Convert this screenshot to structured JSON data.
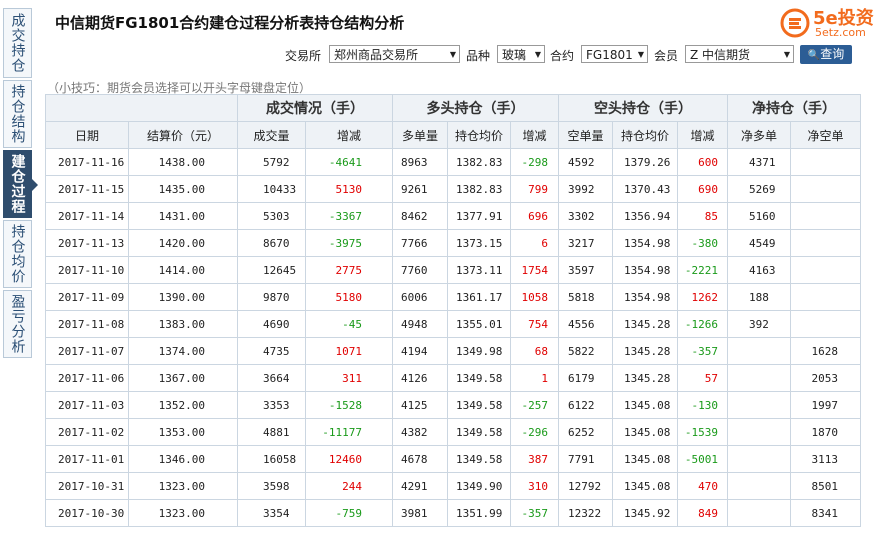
{
  "sidebar": {
    "tabs": [
      "成交持仓",
      "持仓结构",
      "建仓过程",
      "持仓均价",
      "盈亏分析"
    ]
  },
  "header": {
    "title": "中信期货FG1801合约建仓过程分析表持仓结构分析"
  },
  "logo": {
    "brand": "5e投资",
    "domain": "5etz.com"
  },
  "filters": {
    "exchange_label": "交易所",
    "exchange": "郑州商品交易所",
    "variety_label": "品种",
    "variety": "玻璃",
    "contract_label": "合约",
    "contract": "FG1801",
    "member_label": "会员",
    "member": "Z 中信期货",
    "button": "查询"
  },
  "tip": "（小技巧：期货会员选择可以开头字母键盘定位）",
  "table": {
    "groups": [
      "成交情况（手）",
      "多头持仓（手）",
      "空头持仓（手）",
      "净持仓（手）"
    ],
    "columns": [
      "日期",
      "结算价（元）",
      "成交量",
      "增减",
      "多单量",
      "持仓均价",
      "增减",
      "空单量",
      "持仓均价",
      "增减",
      "净多单",
      "净空单"
    ],
    "rows": [
      [
        "2017-11-16",
        "1438.00",
        "5792",
        "-4641",
        "8963",
        "1382.83",
        "-298",
        "4592",
        "1379.26",
        "600",
        "4371",
        null
      ],
      [
        "2017-11-15",
        "1435.00",
        "10433",
        "5130",
        "9261",
        "1382.83",
        "799",
        "3992",
        "1370.43",
        "690",
        "5269",
        null
      ],
      [
        "2017-11-14",
        "1431.00",
        "5303",
        "-3367",
        "8462",
        "1377.91",
        "696",
        "3302",
        "1356.94",
        "85",
        "5160",
        null
      ],
      [
        "2017-11-13",
        "1420.00",
        "8670",
        "-3975",
        "7766",
        "1373.15",
        "6",
        "3217",
        "1354.98",
        "-380",
        "4549",
        null
      ],
      [
        "2017-11-10",
        "1414.00",
        "12645",
        "2775",
        "7760",
        "1373.11",
        "1754",
        "3597",
        "1354.98",
        "-2221",
        "4163",
        null
      ],
      [
        "2017-11-09",
        "1390.00",
        "9870",
        "5180",
        "6006",
        "1361.17",
        "1058",
        "5818",
        "1354.98",
        "1262",
        "188",
        null
      ],
      [
        "2017-11-08",
        "1383.00",
        "4690",
        "-45",
        "4948",
        "1355.01",
        "754",
        "4556",
        "1345.28",
        "-1266",
        "392",
        null
      ],
      [
        "2017-11-07",
        "1374.00",
        "4735",
        "1071",
        "4194",
        "1349.98",
        "68",
        "5822",
        "1345.28",
        "-357",
        null,
        "1628"
      ],
      [
        "2017-11-06",
        "1367.00",
        "3664",
        "311",
        "4126",
        "1349.58",
        "1",
        "6179",
        "1345.28",
        "57",
        null,
        "2053"
      ],
      [
        "2017-11-03",
        "1352.00",
        "3353",
        "-1528",
        "4125",
        "1349.58",
        "-257",
        "6122",
        "1345.08",
        "-130",
        null,
        "1997"
      ],
      [
        "2017-11-02",
        "1353.00",
        "4881",
        "-11177",
        "4382",
        "1349.58",
        "-296",
        "6252",
        "1345.08",
        "-1539",
        null,
        "1870"
      ],
      [
        "2017-11-01",
        "1346.00",
        "16058",
        "12460",
        "4678",
        "1349.58",
        "387",
        "7791",
        "1345.08",
        "-5001",
        null,
        "3113"
      ],
      [
        "2017-10-31",
        "1323.00",
        "3598",
        "244",
        "4291",
        "1349.90",
        "310",
        "12792",
        "1345.08",
        "470",
        null,
        "8501"
      ],
      [
        "2017-10-30",
        "1323.00",
        "3354",
        "-759",
        "3981",
        "1351.99",
        "-357",
        "12322",
        "1345.92",
        "849",
        null,
        "8341"
      ]
    ]
  }
}
